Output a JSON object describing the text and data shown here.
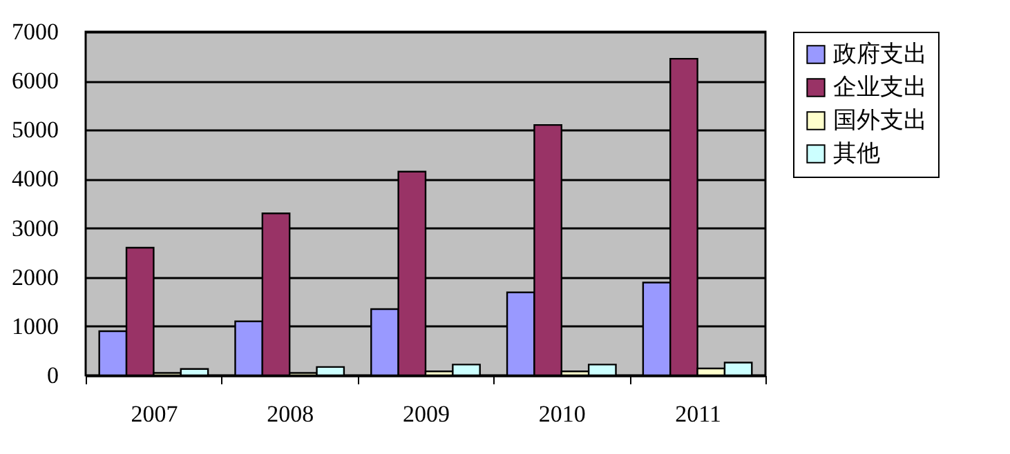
{
  "chart_data": {
    "type": "bar",
    "categories": [
      "2007",
      "2008",
      "2009",
      "2010",
      "2011"
    ],
    "series": [
      {
        "name": "政府支出",
        "color": "#9999ff",
        "values": [
          900,
          1100,
          1350,
          1690,
          1890
        ]
      },
      {
        "name": "企业支出",
        "color": "#993366",
        "values": [
          2600,
          3300,
          4150,
          5100,
          6450
        ]
      },
      {
        "name": "国外支出",
        "color": "#ffffcc",
        "values": [
          50,
          50,
          80,
          80,
          140
        ]
      },
      {
        "name": "其他",
        "color": "#ccffff",
        "values": [
          130,
          170,
          220,
          220,
          260
        ]
      }
    ],
    "ylim": [
      0,
      7000
    ],
    "yticks": [
      0,
      1000,
      2000,
      3000,
      4000,
      5000,
      6000,
      7000
    ],
    "grid": "y",
    "legend": "right"
  }
}
